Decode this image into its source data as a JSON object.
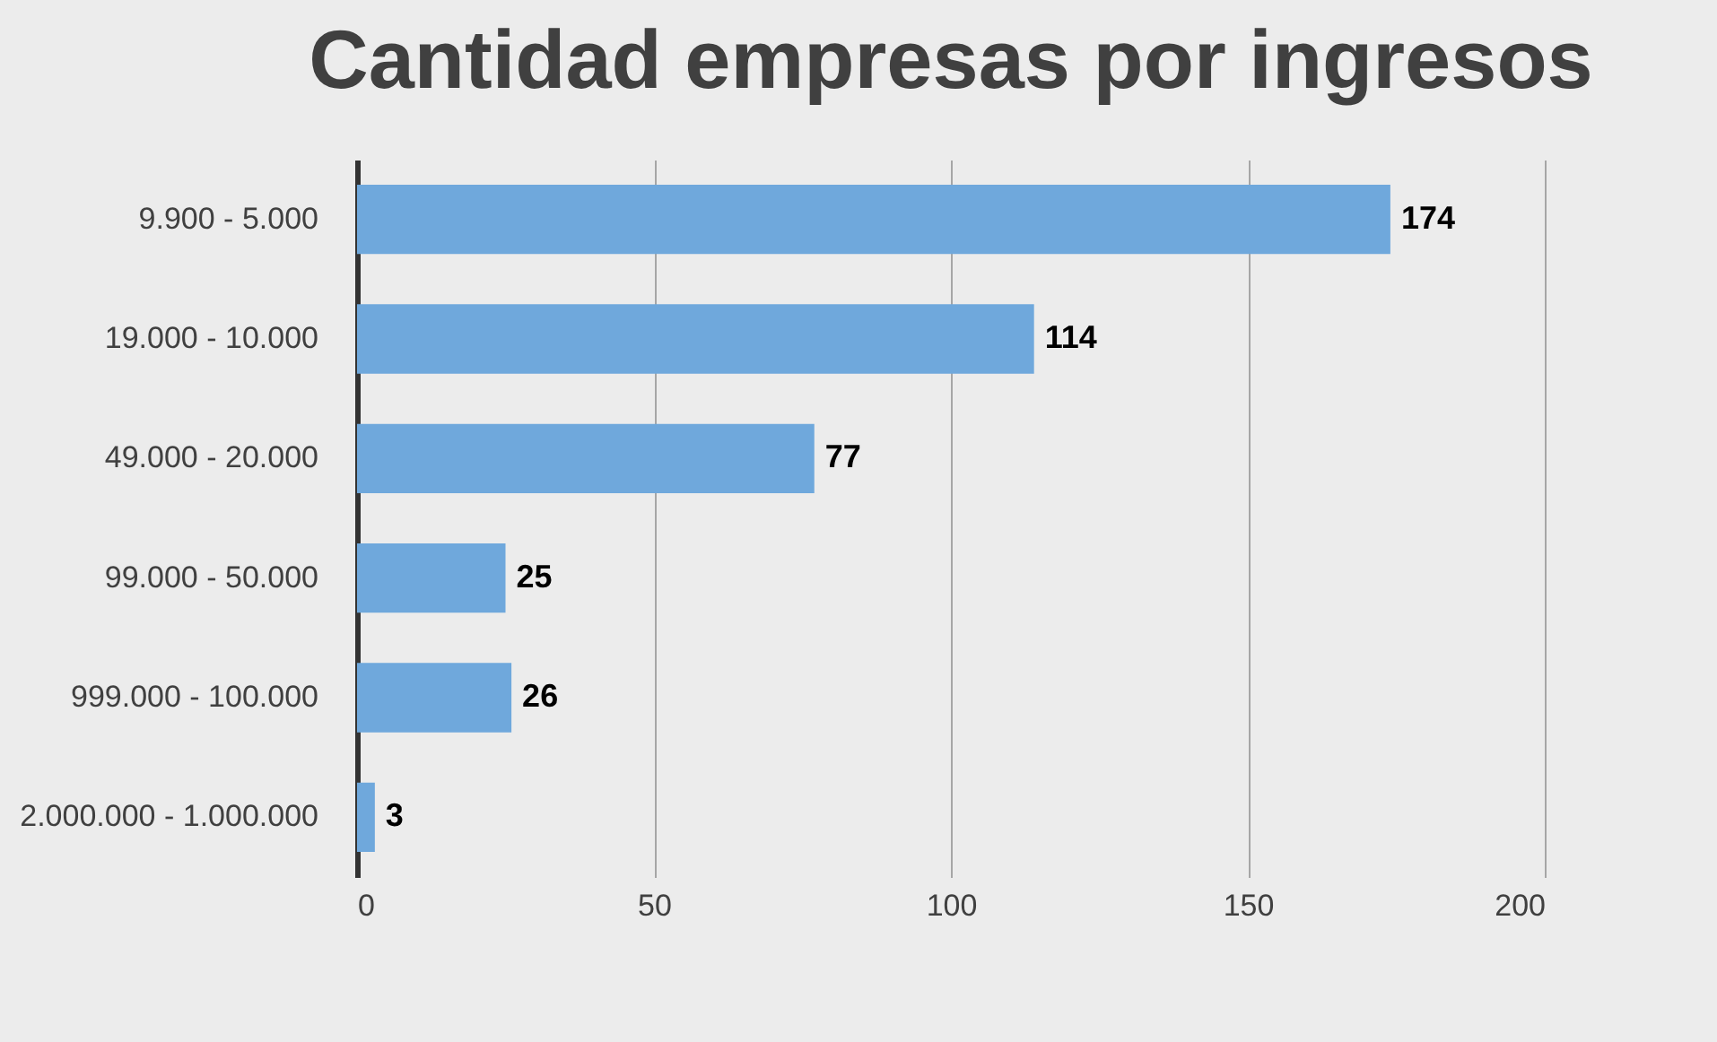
{
  "chart_data": {
    "type": "bar",
    "orientation": "horizontal",
    "title": "Cantidad empresas por ingresos",
    "categories": [
      "9.900 - 5.000",
      "19.000 - 10.000",
      "49.000 - 20.000",
      "99.000 - 50.000",
      "999.000 - 100.000",
      "2.000.000 - 1.000.000"
    ],
    "values": [
      174,
      114,
      77,
      25,
      26,
      3
    ],
    "color": "#6fa8dc",
    "xlim": [
      0,
      200
    ],
    "xticks": [
      0,
      50,
      100,
      150,
      200
    ],
    "grid": "x",
    "data_labels": true
  }
}
